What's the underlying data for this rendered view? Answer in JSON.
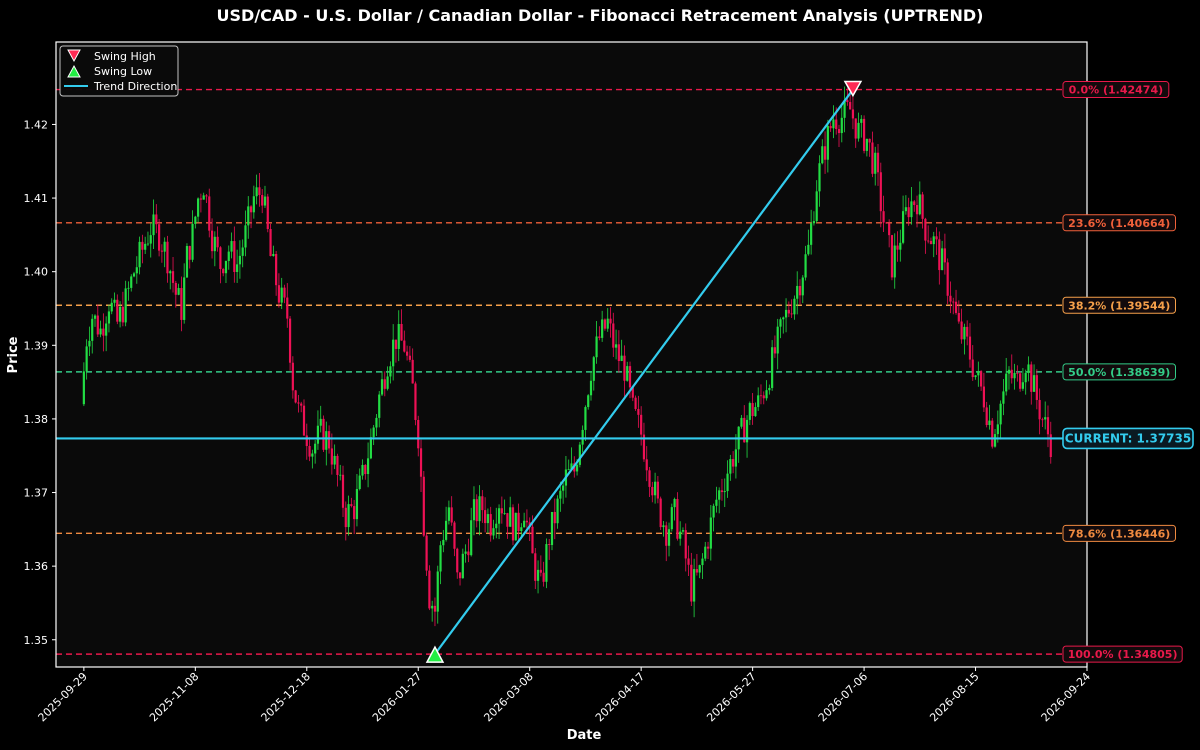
{
  "chart_data": {
    "type": "candlestick",
    "title": "USD/CAD - U.S. Dollar / Canadian Dollar - Fibonacci Retracement Analysis (UPTREND)",
    "xlabel": "Date",
    "ylabel": "Price",
    "xlim": [
      "2025-09-19",
      "2026-09-24"
    ],
    "ylim": [
      1.3463,
      1.4312
    ],
    "yticks": [
      1.35,
      1.36,
      1.37,
      1.38,
      1.39,
      1.4,
      1.41,
      1.42
    ],
    "xticks": [
      "2025-09-29",
      "2025-11-08",
      "2025-12-18",
      "2026-01-27",
      "2026-03-08",
      "2026-04-17",
      "2026-05-27",
      "2026-07-06",
      "2026-08-15",
      "2026-09-24"
    ],
    "grid": false,
    "legend": {
      "position": "top-left",
      "entries": [
        {
          "label": "Swing High",
          "marker": "triangle-down",
          "color": "#ff2a55"
        },
        {
          "label": "Swing Low",
          "marker": "triangle-up",
          "color": "#22ee44"
        },
        {
          "label": "Trend Direction",
          "marker": "line",
          "color": "#33ccee"
        }
      ]
    },
    "swing_high": {
      "date": "2026-07-02",
      "price": 1.42474
    },
    "swing_low": {
      "date": "2026-02-02",
      "price": 1.34805
    },
    "current": {
      "label": "CURRENT: 1.37735",
      "price": 1.37735,
      "color": "#33ccee"
    },
    "fib_levels": [
      {
        "label": "0.0% (1.42474)",
        "price": 1.42474,
        "color": "#e8194a"
      },
      {
        "label": "23.6% (1.40664)",
        "price": 1.40664,
        "color": "#f0603a"
      },
      {
        "label": "38.2% (1.39544)",
        "price": 1.39544,
        "color": "#f5a04a"
      },
      {
        "label": "50.0% (1.38639)",
        "price": 1.38639,
        "color": "#33cc88"
      },
      {
        "label": "78.6% (1.36446)",
        "price": 1.36446,
        "color": "#f08a40"
      },
      {
        "label": "100.0% (1.34805)",
        "price": 1.34805,
        "color": "#e8194a"
      }
    ],
    "colors": {
      "up": "#22dd44",
      "down": "#ee1155",
      "background": "#0a0a0a",
      "frame": "#ffffff"
    },
    "price_path": [
      {
        "date": "2025-09-29",
        "close": 1.382
      },
      {
        "date": "2025-10-01",
        "close": 1.391
      },
      {
        "date": "2025-10-03",
        "close": 1.394
      },
      {
        "date": "2025-10-06",
        "close": 1.392
      },
      {
        "date": "2025-10-09",
        "close": 1.396
      },
      {
        "date": "2025-10-12",
        "close": 1.393
      },
      {
        "date": "2025-10-15",
        "close": 1.396
      },
      {
        "date": "2025-10-18",
        "close": 1.4
      },
      {
        "date": "2025-10-21",
        "close": 1.403
      },
      {
        "date": "2025-10-24",
        "close": 1.406
      },
      {
        "date": "2025-10-27",
        "close": 1.405
      },
      {
        "date": "2025-10-30",
        "close": 1.402
      },
      {
        "date": "2025-11-02",
        "close": 1.397
      },
      {
        "date": "2025-11-04",
        "close": 1.395
      },
      {
        "date": "2025-11-06",
        "close": 1.402
      },
      {
        "date": "2025-11-08",
        "close": 1.405
      },
      {
        "date": "2025-11-10",
        "close": 1.41
      },
      {
        "date": "2025-11-12",
        "close": 1.412
      },
      {
        "date": "2025-11-15",
        "close": 1.405
      },
      {
        "date": "2025-11-18",
        "close": 1.401
      },
      {
        "date": "2025-11-21",
        "close": 1.403
      },
      {
        "date": "2025-11-24",
        "close": 1.401
      },
      {
        "date": "2025-11-27",
        "close": 1.405
      },
      {
        "date": "2025-11-30",
        "close": 1.41
      },
      {
        "date": "2025-12-03",
        "close": 1.411
      },
      {
        "date": "2025-12-06",
        "close": 1.402
      },
      {
        "date": "2025-12-09",
        "close": 1.397
      },
      {
        "date": "2025-12-12",
        "close": 1.394
      },
      {
        "date": "2025-12-14",
        "close": 1.385
      },
      {
        "date": "2025-12-16",
        "close": 1.381
      },
      {
        "date": "2025-12-18",
        "close": 1.379
      },
      {
        "date": "2025-12-21",
        "close": 1.376
      },
      {
        "date": "2025-12-24",
        "close": 1.378
      },
      {
        "date": "2025-12-27",
        "close": 1.377
      },
      {
        "date": "2025-12-30",
        "close": 1.372
      },
      {
        "date": "2026-01-02",
        "close": 1.367
      },
      {
        "date": "2026-01-05",
        "close": 1.368
      },
      {
        "date": "2026-01-08",
        "close": 1.372
      },
      {
        "date": "2026-01-11",
        "close": 1.377
      },
      {
        "date": "2026-01-14",
        "close": 1.383
      },
      {
        "date": "2026-01-17",
        "close": 1.388
      },
      {
        "date": "2026-01-20",
        "close": 1.391
      },
      {
        "date": "2026-01-23",
        "close": 1.39
      },
      {
        "date": "2026-01-26",
        "close": 1.384
      },
      {
        "date": "2026-01-28",
        "close": 1.378
      },
      {
        "date": "2026-01-30",
        "close": 1.366
      },
      {
        "date": "2026-02-01",
        "close": 1.356
      },
      {
        "date": "2026-02-03",
        "close": 1.354
      },
      {
        "date": "2026-02-05",
        "close": 1.363
      },
      {
        "date": "2026-02-08",
        "close": 1.368
      },
      {
        "date": "2026-02-11",
        "close": 1.358
      },
      {
        "date": "2026-02-14",
        "close": 1.362
      },
      {
        "date": "2026-02-17",
        "close": 1.367
      },
      {
        "date": "2026-02-20",
        "close": 1.368
      },
      {
        "date": "2026-02-23",
        "close": 1.366
      },
      {
        "date": "2026-02-26",
        "close": 1.369
      },
      {
        "date": "2026-03-01",
        "close": 1.367
      },
      {
        "date": "2026-03-04",
        "close": 1.365
      },
      {
        "date": "2026-03-07",
        "close": 1.368
      },
      {
        "date": "2026-03-10",
        "close": 1.361
      },
      {
        "date": "2026-03-13",
        "close": 1.357
      },
      {
        "date": "2026-03-16",
        "close": 1.364
      },
      {
        "date": "2026-03-19",
        "close": 1.368
      },
      {
        "date": "2026-03-22",
        "close": 1.372
      },
      {
        "date": "2026-03-25",
        "close": 1.373
      },
      {
        "date": "2026-03-28",
        "close": 1.38
      },
      {
        "date": "2026-03-31",
        "close": 1.387
      },
      {
        "date": "2026-04-03",
        "close": 1.391
      },
      {
        "date": "2026-04-06",
        "close": 1.393
      },
      {
        "date": "2026-04-09",
        "close": 1.389
      },
      {
        "date": "2026-04-12",
        "close": 1.387
      },
      {
        "date": "2026-04-15",
        "close": 1.381
      },
      {
        "date": "2026-04-18",
        "close": 1.378
      },
      {
        "date": "2026-04-21",
        "close": 1.373
      },
      {
        "date": "2026-04-24",
        "close": 1.368
      },
      {
        "date": "2026-04-27",
        "close": 1.365
      },
      {
        "date": "2026-04-30",
        "close": 1.367
      },
      {
        "date": "2026-05-03",
        "close": 1.363
      },
      {
        "date": "2026-05-06",
        "close": 1.357
      },
      {
        "date": "2026-05-09",
        "close": 1.359
      },
      {
        "date": "2026-05-12",
        "close": 1.364
      },
      {
        "date": "2026-05-15",
        "close": 1.369
      },
      {
        "date": "2026-05-18",
        "close": 1.372
      },
      {
        "date": "2026-05-21",
        "close": 1.375
      },
      {
        "date": "2026-05-24",
        "close": 1.378
      },
      {
        "date": "2026-05-27",
        "close": 1.381
      },
      {
        "date": "2026-05-30",
        "close": 1.382
      },
      {
        "date": "2026-06-02",
        "close": 1.385
      },
      {
        "date": "2026-06-05",
        "close": 1.389
      },
      {
        "date": "2026-06-08",
        "close": 1.393
      },
      {
        "date": "2026-06-11",
        "close": 1.396
      },
      {
        "date": "2026-06-14",
        "close": 1.399
      },
      {
        "date": "2026-06-17",
        "close": 1.403
      },
      {
        "date": "2026-06-20",
        "close": 1.412
      },
      {
        "date": "2026-06-23",
        "close": 1.417
      },
      {
        "date": "2026-06-26",
        "close": 1.421
      },
      {
        "date": "2026-06-29",
        "close": 1.421
      },
      {
        "date": "2026-07-02",
        "close": 1.422
      },
      {
        "date": "2026-07-05",
        "close": 1.419
      },
      {
        "date": "2026-07-08",
        "close": 1.418
      },
      {
        "date": "2026-07-11",
        "close": 1.414
      },
      {
        "date": "2026-07-14",
        "close": 1.407
      },
      {
        "date": "2026-07-17",
        "close": 1.401
      },
      {
        "date": "2026-07-20",
        "close": 1.405
      },
      {
        "date": "2026-07-23",
        "close": 1.409
      },
      {
        "date": "2026-07-26",
        "close": 1.41
      },
      {
        "date": "2026-07-29",
        "close": 1.406
      },
      {
        "date": "2026-08-01",
        "close": 1.404
      },
      {
        "date": "2026-08-04",
        "close": 1.401
      },
      {
        "date": "2026-08-07",
        "close": 1.397
      },
      {
        "date": "2026-08-10",
        "close": 1.392
      },
      {
        "date": "2026-08-13",
        "close": 1.39
      },
      {
        "date": "2026-08-16",
        "close": 1.386
      },
      {
        "date": "2026-08-19",
        "close": 1.383
      },
      {
        "date": "2026-08-22",
        "close": 1.378
      },
      {
        "date": "2026-08-25",
        "close": 1.382
      },
      {
        "date": "2026-08-28",
        "close": 1.386
      },
      {
        "date": "2026-08-31",
        "close": 1.385
      },
      {
        "date": "2026-09-03",
        "close": 1.388
      },
      {
        "date": "2026-09-06",
        "close": 1.384
      },
      {
        "date": "2026-09-09",
        "close": 1.38
      },
      {
        "date": "2026-09-12",
        "close": 1.377
      }
    ]
  }
}
